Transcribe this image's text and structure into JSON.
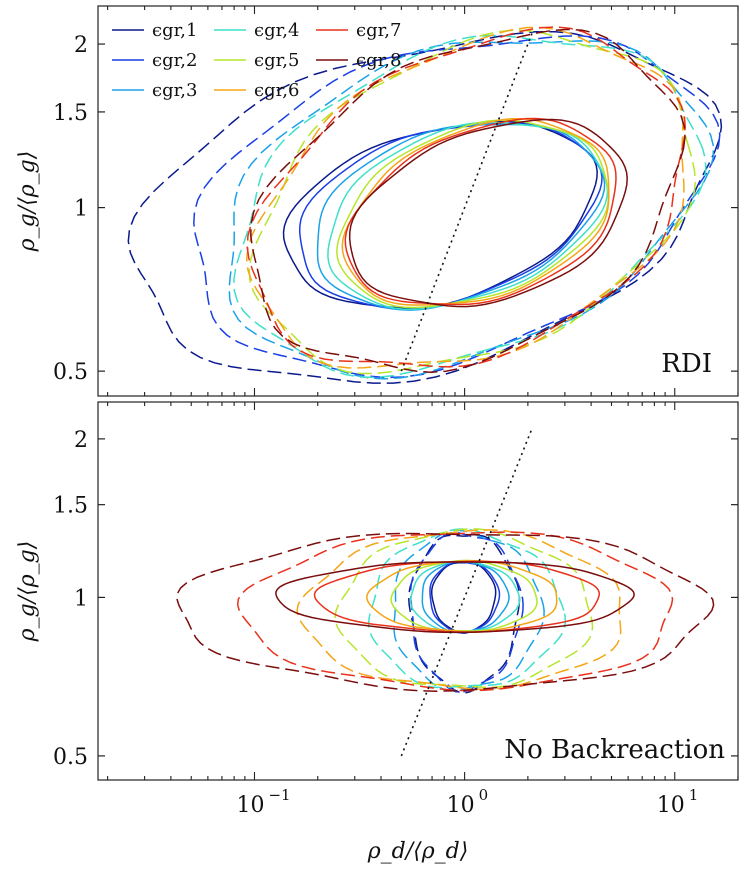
{
  "chart_data": [
    {
      "type": "contour",
      "panel_label": "RDI",
      "title": "",
      "xlabel": "",
      "ylabel": "ρ_g/⟨ρ_g⟩",
      "xscale": "log",
      "yscale": "log",
      "xlim": [
        0.018,
        20
      ],
      "ylim": [
        0.45,
        2.35
      ],
      "y_ticks": [
        {
          "value": 0.5,
          "label": "0.5"
        },
        {
          "value": 1,
          "label": "1"
        },
        {
          "value": 1.5,
          "label": "1.5"
        },
        {
          "value": 2,
          "label": "2"
        }
      ],
      "x_ticks": [],
      "reference_line": {
        "style": "dotted",
        "from": [
          0.5,
          0.5
        ],
        "to": [
          2.1,
          2.1
        ]
      },
      "series": [
        {
          "name": "ϵgr,1",
          "color": "#0b1a8c",
          "inner": {
            "center": [
              0.95,
              0.98
            ],
            "xspan": [
              0.14,
              4.2
            ],
            "yspan": [
              0.67,
              1.41
            ]
          },
          "outer": {
            "center": [
              1.0,
              1.0
            ],
            "xspan": [
              0.027,
              15.5
            ],
            "yspan": [
              0.5,
              2.0
            ]
          }
        },
        {
          "name": "ϵgr,2",
          "color": "#1a3fe6",
          "inner": {
            "center": [
              0.97,
              0.98
            ],
            "xspan": [
              0.16,
              4.3
            ],
            "yspan": [
              0.67,
              1.41
            ]
          },
          "outer": {
            "center": [
              1.0,
              1.0
            ],
            "xspan": [
              0.05,
              14.5
            ],
            "yspan": [
              0.52,
              2.0
            ]
          }
        },
        {
          "name": "ϵgr,3",
          "color": "#1aa2e8",
          "inner": {
            "center": [
              1.0,
              0.98
            ],
            "xspan": [
              0.19,
              4.4
            ],
            "yspan": [
              0.67,
              1.41
            ]
          },
          "outer": {
            "center": [
              1.0,
              1.0
            ],
            "xspan": [
              0.07,
              13.5
            ],
            "yspan": [
              0.52,
              2.0
            ]
          }
        },
        {
          "name": "ϵgr,4",
          "color": "#3ee0c9",
          "inner": {
            "center": [
              1.02,
              0.98
            ],
            "xspan": [
              0.22,
              4.6
            ],
            "yspan": [
              0.67,
              1.41
            ]
          },
          "outer": {
            "center": [
              1.0,
              1.0
            ],
            "xspan": [
              0.08,
              12.8
            ],
            "yspan": [
              0.52,
              2.0
            ]
          }
        },
        {
          "name": "ϵgr,5",
          "color": "#b6e62a",
          "inner": {
            "center": [
              1.03,
              0.98
            ],
            "xspan": [
              0.25,
              4.8
            ],
            "yspan": [
              0.67,
              1.41
            ]
          },
          "outer": {
            "center": [
              1.0,
              1.0
            ],
            "xspan": [
              0.1,
              12.2
            ],
            "yspan": [
              0.52,
              2.0
            ]
          }
        },
        {
          "name": "ϵgr,6",
          "color": "#f5a516",
          "inner": {
            "center": [
              1.05,
              0.98
            ],
            "xspan": [
              0.27,
              5.0
            ],
            "yspan": [
              0.67,
              1.41
            ]
          },
          "outer": {
            "center": [
              1.0,
              1.0
            ],
            "xspan": [
              0.1,
              11.8
            ],
            "yspan": [
              0.52,
              2.0
            ]
          }
        },
        {
          "name": "ϵgr,7",
          "color": "#e8321c",
          "inner": {
            "center": [
              1.07,
              0.98
            ],
            "xspan": [
              0.28,
              5.4
            ],
            "yspan": [
              0.67,
              1.41
            ]
          },
          "outer": {
            "center": [
              1.0,
              1.0
            ],
            "xspan": [
              0.1,
              11.5
            ],
            "yspan": [
              0.52,
              2.0
            ]
          }
        },
        {
          "name": "ϵgr,8",
          "color": "#7a0d0d",
          "inner": {
            "center": [
              1.1,
              0.98
            ],
            "xspan": [
              0.29,
              6.0
            ],
            "yspan": [
              0.67,
              1.41
            ]
          },
          "outer": {
            "center": [
              1.0,
              1.0
            ],
            "xspan": [
              0.1,
              11.0
            ],
            "yspan": [
              0.52,
              2.0
            ]
          }
        }
      ]
    },
    {
      "type": "contour",
      "panel_label": "No Backreaction",
      "title": "",
      "xlabel": "ρ_d/⟨ρ_d⟩",
      "ylabel": "ρ_g/⟨ρ_g⟩",
      "xscale": "log",
      "yscale": "log",
      "xlim": [
        0.018,
        20
      ],
      "ylim": [
        0.45,
        2.35
      ],
      "y_ticks": [
        {
          "value": 0.5,
          "label": "0.5"
        },
        {
          "value": 1,
          "label": "1"
        },
        {
          "value": 1.5,
          "label": "1.5"
        },
        {
          "value": 2,
          "label": "2"
        }
      ],
      "x_ticks": [
        {
          "value": 0.1,
          "label": "10",
          "exp": "−1"
        },
        {
          "value": 1,
          "label": "10",
          "exp": "0"
        },
        {
          "value": 10,
          "label": "10",
          "exp": "1"
        }
      ],
      "reference_line": {
        "style": "dotted",
        "from": [
          0.5,
          0.5
        ],
        "to": [
          2.1,
          2.1
        ]
      },
      "series": [
        {
          "name": "ϵgr,1",
          "color": "#0b1a8c",
          "inner": {
            "center": [
              1.0,
              1.0
            ],
            "xspan": [
              0.7,
              1.4
            ],
            "yspan": [
              0.86,
              1.17
            ]
          },
          "outer": {
            "center": [
              1.0,
              1.0
            ],
            "xspan": [
              0.55,
              1.8
            ],
            "yspan": [
              0.67,
              1.33
            ]
          }
        },
        {
          "name": "ϵgr,2",
          "color": "#1a3fe6",
          "inner": {
            "center": [
              1.0,
              1.0
            ],
            "xspan": [
              0.68,
              1.45
            ],
            "yspan": [
              0.86,
              1.17
            ]
          },
          "outer": {
            "center": [
              1.0,
              1.0
            ],
            "xspan": [
              0.55,
              1.85
            ],
            "yspan": [
              0.67,
              1.33
            ]
          }
        },
        {
          "name": "ϵgr,3",
          "color": "#1aa2e8",
          "inner": {
            "center": [
              1.0,
              1.0
            ],
            "xspan": [
              0.62,
              1.6
            ],
            "yspan": [
              0.86,
              1.17
            ]
          },
          "outer": {
            "center": [
              1.0,
              1.0
            ],
            "xspan": [
              0.45,
              2.3
            ],
            "yspan": [
              0.67,
              1.33
            ]
          }
        },
        {
          "name": "ϵgr,4",
          "color": "#3ee0c9",
          "inner": {
            "center": [
              1.0,
              1.0
            ],
            "xspan": [
              0.55,
              1.8
            ],
            "yspan": [
              0.86,
              1.17
            ]
          },
          "outer": {
            "center": [
              1.0,
              1.0
            ],
            "xspan": [
              0.35,
              2.9
            ],
            "yspan": [
              0.67,
              1.33
            ]
          }
        },
        {
          "name": "ϵgr,5",
          "color": "#b6e62a",
          "inner": {
            "center": [
              1.0,
              1.0
            ],
            "xspan": [
              0.45,
              2.2
            ],
            "yspan": [
              0.86,
              1.17
            ]
          },
          "outer": {
            "center": [
              1.0,
              1.0
            ],
            "xspan": [
              0.25,
              4.0
            ],
            "yspan": [
              0.67,
              1.33
            ]
          }
        },
        {
          "name": "ϵgr,6",
          "color": "#f5a516",
          "inner": {
            "center": [
              1.0,
              1.0
            ],
            "xspan": [
              0.35,
              2.8
            ],
            "yspan": [
              0.86,
              1.17
            ]
          },
          "outer": {
            "center": [
              1.0,
              1.0
            ],
            "xspan": [
              0.17,
              5.8
            ],
            "yspan": [
              0.67,
              1.33
            ]
          }
        },
        {
          "name": "ϵgr,7",
          "color": "#e8321c",
          "inner": {
            "center": [
              1.0,
              1.0
            ],
            "xspan": [
              0.2,
              4.5
            ],
            "yspan": [
              0.86,
              1.17
            ]
          },
          "outer": {
            "center": [
              1.0,
              1.0
            ],
            "xspan": [
              0.09,
              10.0
            ],
            "yspan": [
              0.67,
              1.33
            ]
          }
        },
        {
          "name": "ϵgr,8",
          "color": "#7a0d0d",
          "inner": {
            "center": [
              1.0,
              1.0
            ],
            "xspan": [
              0.13,
              6.5
            ],
            "yspan": [
              0.86,
              1.17
            ]
          },
          "outer": {
            "center": [
              1.0,
              1.0
            ],
            "xspan": [
              0.045,
              15.0
            ],
            "yspan": [
              0.67,
              1.33
            ]
          }
        }
      ]
    }
  ]
}
